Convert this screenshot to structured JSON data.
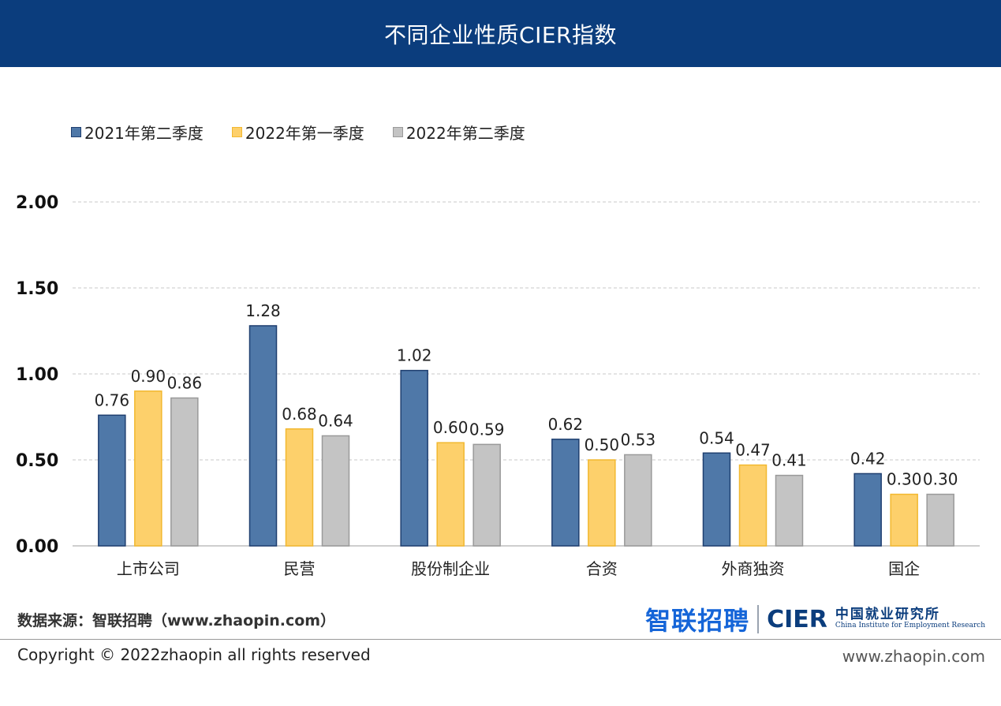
{
  "header": {
    "title": "不同企业性质CIER指数"
  },
  "chart_data": {
    "type": "bar",
    "title": "不同企业性质CIER指数",
    "categories": [
      "上市公司",
      "民营",
      "股份制企业",
      "合资",
      "外商独资",
      "国企"
    ],
    "series": [
      {
        "name": "2021年第二季度",
        "color": "#4f78a8",
        "stroke": "#1f3f70",
        "values": [
          0.76,
          1.28,
          1.02,
          0.62,
          0.54,
          0.42
        ],
        "labels": [
          "0.76",
          "1.28",
          "1.02",
          "0.62",
          "0.54",
          "0.42"
        ]
      },
      {
        "name": "2022年第一季度",
        "color": "#fdd06b",
        "stroke": "#f2b830",
        "values": [
          0.9,
          0.68,
          0.6,
          0.5,
          0.47,
          0.3
        ],
        "labels": [
          "0.90",
          "0.68",
          "0.60",
          "0.50",
          "0.47",
          "0.30"
        ]
      },
      {
        "name": "2022年第二季度",
        "color": "#c4c4c4",
        "stroke": "#9a9a9a",
        "values": [
          0.86,
          0.64,
          0.59,
          0.53,
          0.41,
          0.3
        ],
        "labels": [
          "0.86",
          "0.64",
          "0.59",
          "0.53",
          "0.41",
          "0.30"
        ]
      }
    ],
    "ylim": [
      0,
      2.0
    ],
    "yticks": [
      0.0,
      0.5,
      1.0,
      1.5,
      2.0
    ],
    "ytick_labels": [
      "0.00",
      "0.50",
      "1.00",
      "1.50",
      "2.00"
    ],
    "xlabel": "",
    "ylabel": "",
    "grid": true,
    "grid_style": "dashed",
    "legend_position": "top-left"
  },
  "footer": {
    "source": "数据来源：智联招聘（www.zhaopin.com）",
    "copyright": "Copyright ©  2022zhaopin all rights reserved",
    "url": "www.zhaopin.com",
    "logo_zhaopin": "智联招聘",
    "logo_cier": "CIER",
    "logo_cier_cn": "中国就业研究所",
    "logo_cier_en": "China Institute for Employment Research"
  }
}
